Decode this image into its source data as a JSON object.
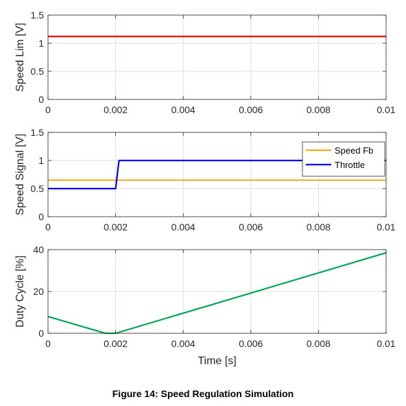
{
  "caption": "Figure 14: Speed Regulation Simulation",
  "chart_data": [
    {
      "type": "line",
      "ylabel": "Speed Lim [V]",
      "xlabel": "",
      "xlim": [
        0,
        0.01
      ],
      "ylim": [
        0,
        1.5
      ],
      "xticks": [
        "0",
        "0.002",
        "0.004",
        "0.006",
        "0.008",
        "0.01"
      ],
      "yticks": [
        "0",
        "0.5",
        "1",
        "1.5"
      ],
      "grid": true,
      "series": [
        {
          "color": "#ff0000",
          "x": [
            0,
            0.01
          ],
          "y": [
            1.12,
            1.12
          ]
        }
      ]
    },
    {
      "type": "line",
      "ylabel": "Speed Signal [V]",
      "xlabel": "",
      "xlim": [
        0,
        0.01
      ],
      "ylim": [
        0,
        1.5
      ],
      "xticks": [
        "0",
        "0.002",
        "0.004",
        "0.006",
        "0.008",
        "0.01"
      ],
      "yticks": [
        "0",
        "0.5",
        "1",
        "1.5"
      ],
      "grid": true,
      "legend": "top-right",
      "series": [
        {
          "name": "Speed Fb",
          "color": "#edb120",
          "x": [
            0,
            0.01
          ],
          "y": [
            0.65,
            0.65
          ]
        },
        {
          "name": "Throttle",
          "color": "#0000ff",
          "x": [
            0,
            0.002,
            0.0021,
            0.01
          ],
          "y": [
            0.5,
            0.5,
            1.0,
            1.0
          ]
        }
      ]
    },
    {
      "type": "line",
      "ylabel": "Duty Cycle [%]",
      "xlabel": "Time [s]",
      "xlim": [
        0,
        0.01
      ],
      "ylim": [
        0,
        40
      ],
      "xticks": [
        "0",
        "0.002",
        "0.004",
        "0.006",
        "0.008",
        "0.01"
      ],
      "yticks": [
        "0",
        "20",
        "40"
      ],
      "grid": true,
      "series": [
        {
          "color": "#00a651",
          "x": [
            0,
            0.0017,
            0.002,
            0.01
          ],
          "y": [
            8,
            0,
            0,
            38.5
          ]
        }
      ]
    }
  ]
}
